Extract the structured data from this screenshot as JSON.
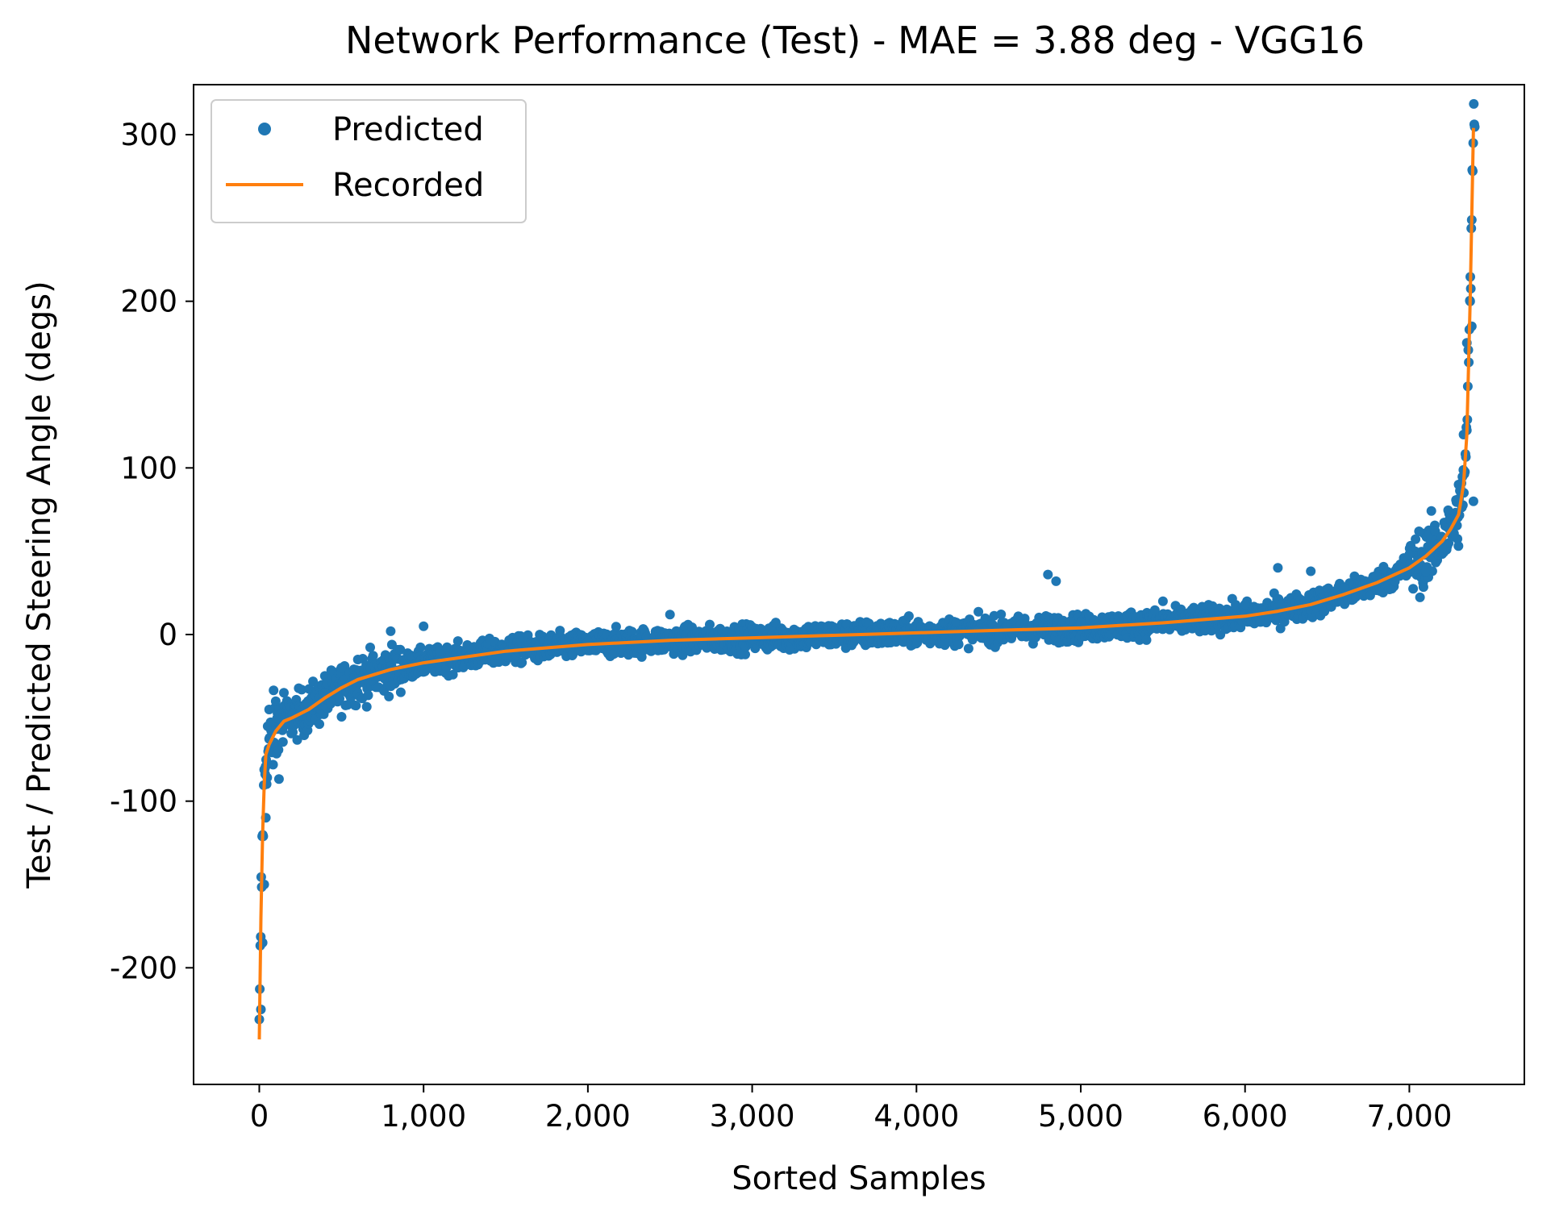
{
  "chart_data": {
    "type": "scatter",
    "title": "Network Performance (Test) - MAE = 3.88 deg - VGG16",
    "xlabel": "Sorted Samples",
    "ylabel": "Test / Predicted Steering Angle (degs)",
    "xlim": [
      -400,
      7700
    ],
    "ylim": [
      -270,
      330
    ],
    "xticks": [
      0,
      1000,
      2000,
      3000,
      4000,
      5000,
      6000,
      7000
    ],
    "xtick_labels": [
      "0",
      "1,000",
      "2,000",
      "3,000",
      "4,000",
      "5,000",
      "6,000",
      "7,000"
    ],
    "yticks": [
      -200,
      -100,
      0,
      100,
      200,
      300
    ],
    "ytick_labels": [
      "-200",
      "-100",
      "0",
      "100",
      "200",
      "300"
    ],
    "grid": false,
    "legend": {
      "position": "upper-left",
      "entries": [
        "Predicted",
        "Recorded"
      ]
    },
    "colors": {
      "predicted": "#1f77b4",
      "recorded": "#ff7f0e"
    },
    "n_samples": 7400,
    "series": [
      {
        "name": "Recorded",
        "style": "line",
        "x": [
          0,
          10,
          20,
          30,
          40,
          60,
          80,
          100,
          150,
          200,
          300,
          400,
          500,
          600,
          800,
          1000,
          1500,
          2000,
          2500,
          3000,
          3500,
          4000,
          4500,
          5000,
          5500,
          6000,
          6200,
          6400,
          6600,
          6800,
          7000,
          7100,
          7200,
          7250,
          7300,
          7330,
          7350,
          7370,
          7390
        ],
        "y": [
          -243,
          -170,
          -120,
          -90,
          -72,
          -66,
          -62,
          -58,
          -52,
          -50,
          -45,
          -38,
          -32,
          -27,
          -21,
          -17,
          -10,
          -6,
          -3.5,
          -2,
          -0.5,
          1,
          2.5,
          4,
          7,
          11,
          14,
          18,
          24,
          31,
          40,
          47,
          56,
          63,
          72,
          90,
          120,
          200,
          304
        ]
      },
      {
        "name": "Predicted",
        "style": "markers",
        "x": [
          10,
          20,
          30,
          40,
          60,
          100,
          150,
          200,
          300,
          400,
          500,
          600,
          700,
          800,
          1000,
          1500,
          2000,
          2500,
          3000,
          3500,
          4000,
          4500,
          4800,
          4850,
          5000,
          5500,
          6000,
          6200,
          6400,
          6600,
          6800,
          7000,
          7100,
          7200,
          7300,
          7330,
          7350,
          7370,
          7380,
          7390
        ],
        "y": [
          -225,
          -185,
          -150,
          -110,
          -45,
          -40,
          -35,
          -48,
          -42,
          -35,
          -20,
          -15,
          -25,
          2,
          5,
          -12,
          -4,
          12,
          -3,
          2,
          0,
          -1,
          36,
          32,
          7,
          20,
          18,
          40,
          38,
          28,
          35,
          48,
          38,
          52,
          90,
          120,
          175,
          200,
          185,
          80
        ]
      }
    ]
  }
}
